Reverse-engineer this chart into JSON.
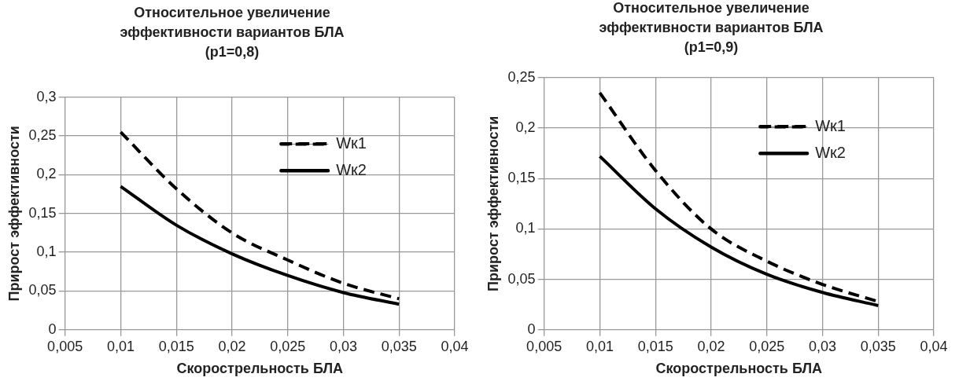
{
  "chart_data": [
    {
      "type": "line",
      "title": "Относительное увеличение эффективности вариантов БЛА (p1=0,8)",
      "xlabel": "Скорострельность БЛА",
      "ylabel": "Прирост эффективности",
      "x": [
        0.01,
        0.015,
        0.02,
        0.025,
        0.03,
        0.035
      ],
      "series": [
        {
          "name": "Wк1",
          "color": "#000000",
          "line_style": "dashed",
          "values": [
            0.255,
            0.182,
            0.125,
            0.09,
            0.06,
            0.04
          ]
        },
        {
          "name": "Wк2",
          "color": "#000000",
          "line_style": "solid",
          "values": [
            0.185,
            0.135,
            0.098,
            0.07,
            0.048,
            0.033
          ]
        }
      ],
      "xlim": [
        0.005,
        0.04
      ],
      "xticks": [
        {
          "value": 0.005,
          "label": "0,005"
        },
        {
          "value": 0.01,
          "label": "0,01"
        },
        {
          "value": 0.015,
          "label": "0,015"
        },
        {
          "value": 0.02,
          "label": "0,02"
        },
        {
          "value": 0.025,
          "label": "0,025"
        },
        {
          "value": 0.03,
          "label": "0,03"
        },
        {
          "value": 0.035,
          "label": "0,035"
        },
        {
          "value": 0.04,
          "label": "0,04"
        }
      ],
      "ylim": [
        0,
        0.3
      ],
      "yticks": [
        0,
        {
          "value": 0.05,
          "label": "0,05"
        },
        {
          "value": 0.1,
          "label": "0,1"
        },
        {
          "value": 0.15,
          "label": "0,15"
        },
        {
          "value": 0.2,
          "label": "0,2"
        },
        {
          "value": 0.25,
          "label": "0,25"
        },
        {
          "value": 0.3,
          "label": "0,3"
        }
      ],
      "grid": true,
      "legend": "right",
      "marker": "none"
    },
    {
      "type": "line",
      "title": "Относительное увеличение эффективности вариантов БЛА (p1=0,9)",
      "xlabel": "Скорострельность БЛА",
      "ylabel": "Прирост эффективности",
      "x": [
        0.01,
        0.015,
        0.02,
        0.025,
        0.03,
        0.035
      ],
      "series": [
        {
          "name": "Wк1",
          "color": "#000000",
          "line_style": "dashed",
          "values": [
            0.235,
            0.158,
            0.1,
            0.068,
            0.045,
            0.028
          ]
        },
        {
          "name": "Wк2",
          "color": "#000000",
          "line_style": "solid",
          "values": [
            0.172,
            0.12,
            0.082,
            0.055,
            0.037,
            0.024
          ]
        }
      ],
      "xlim": [
        0.005,
        0.04
      ],
      "xticks": [
        {
          "value": 0.005,
          "label": "0,005"
        },
        {
          "value": 0.01,
          "label": "0,01"
        },
        {
          "value": 0.015,
          "label": "0,015"
        },
        {
          "value": 0.02,
          "label": "0,02"
        },
        {
          "value": 0.025,
          "label": "0,025"
        },
        {
          "value": 0.03,
          "label": "0,03"
        },
        {
          "value": 0.035,
          "label": "0,035"
        },
        {
          "value": 0.04,
          "label": "0,04"
        }
      ],
      "ylim": [
        0,
        0.25
      ],
      "yticks": [
        0,
        {
          "value": 0.05,
          "label": "0,05"
        },
        {
          "value": 0.1,
          "label": "0,1"
        },
        {
          "value": 0.15,
          "label": "0,15"
        },
        {
          "value": 0.2,
          "label": "0,2"
        },
        {
          "value": 0.25,
          "label": "0,25"
        }
      ],
      "grid": true,
      "legend": "right",
      "marker": "none"
    }
  ]
}
